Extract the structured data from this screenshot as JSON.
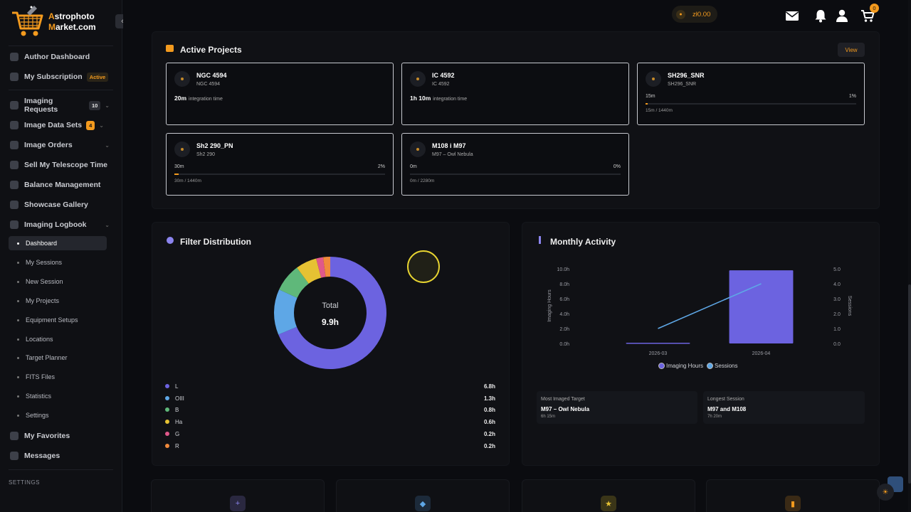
{
  "brand": {
    "line1_a": "A",
    "line1_b": "strophoto",
    "line2_a": "M",
    "line2_b": "arket.com"
  },
  "topbar": {
    "wallet": "zł0.00",
    "cart_count": "0"
  },
  "sidebar": {
    "items": [
      {
        "label": "Author Dashboard"
      },
      {
        "label": "My Subscription",
        "badge": "Active"
      },
      {
        "label": "Imaging Requests",
        "badge": "10"
      },
      {
        "label": "Image Data Sets",
        "badge": "4"
      },
      {
        "label": "Image Orders"
      },
      {
        "label": "Sell My Telescope Time"
      },
      {
        "label": "Balance Management"
      },
      {
        "label": "Showcase Gallery"
      },
      {
        "label": "Imaging Logbook"
      }
    ],
    "logbook_sub": [
      {
        "label": "Dashboard"
      },
      {
        "label": "My Sessions"
      },
      {
        "label": "New Session"
      },
      {
        "label": "My Projects"
      },
      {
        "label": "Equipment Setups"
      },
      {
        "label": "Locations"
      },
      {
        "label": "Target Planner"
      },
      {
        "label": "FITS Files"
      },
      {
        "label": "Statistics"
      },
      {
        "label": "Settings"
      }
    ],
    "extra": [
      {
        "label": "My Favorites"
      },
      {
        "label": "Messages"
      }
    ],
    "section_settings": "SETTINGS"
  },
  "projects": {
    "title": "Active Projects",
    "view_label": "View",
    "cards": [
      {
        "name": "NGC 4594",
        "sub": "NGC 4594",
        "time": "20m",
        "time_label": "integration time"
      },
      {
        "name": "IC 4592",
        "sub": "IC 4592",
        "time": "1h 10m",
        "time_label": "integration time"
      },
      {
        "name": "SH296_SNR",
        "sub": "SH296_SNR",
        "left": "15m",
        "pct": "1%",
        "progress": 0.01,
        "foot": "15m / 1440m"
      },
      {
        "name": "Sh2 290_PN",
        "sub": "Sh2 290",
        "left": "30m",
        "pct": "2%",
        "progress": 0.02,
        "foot": "30m / 1440m"
      },
      {
        "name": "M108 i M97",
        "sub": "M97 – Owl Nebula",
        "left": "0m",
        "pct": "0%",
        "progress": 0,
        "foot": "0m / 2280m"
      }
    ]
  },
  "filter": {
    "title": "Filter Distribution",
    "total_label": "Total",
    "total_value": "9.9h",
    "rows": [
      {
        "name": "L",
        "value": "6.8h",
        "color": "#6c63e0"
      },
      {
        "name": "OIII",
        "value": "1.3h",
        "color": "#5ea7e6"
      },
      {
        "name": "B",
        "value": "0.8h",
        "color": "#5fb87a"
      },
      {
        "name": "Ha",
        "value": "0.6h",
        "color": "#e6c233"
      },
      {
        "name": "G",
        "value": "0.2h",
        "color": "#e0588a"
      },
      {
        "name": "R",
        "value": "0.2h",
        "color": "#f08a3c"
      }
    ]
  },
  "chart_data": {
    "type": "bar",
    "categories": [
      "2026-03",
      "2026-04"
    ],
    "series": [
      {
        "name": "Imaging Hours",
        "kind": "bar",
        "axis": "left",
        "values": [
          0.1,
          9.8
        ],
        "color": "#6c63e0"
      },
      {
        "name": "Sessions",
        "kind": "line",
        "axis": "right",
        "values": [
          1,
          4
        ],
        "color": "#5ea7e6"
      }
    ],
    "ylabel": "Imaging Hours",
    "y2label": "Sessions",
    "ylim": [
      0,
      10
    ],
    "y2lim": [
      0,
      5
    ],
    "yticks": [
      "0.0h",
      "2.0h",
      "4.0h",
      "6.0h",
      "8.0h",
      "10.0h"
    ],
    "y2ticks": [
      "0.0",
      "1.0",
      "2.0",
      "3.0",
      "4.0",
      "5.0"
    ],
    "legend": "bottom"
  },
  "activity": {
    "title": "Monthly Activity",
    "legend_hours": "Imaging Hours",
    "legend_sessions": "Sessions",
    "most_label": "Most Imaged Target",
    "most_value": "M97 – Owl Nebula",
    "most_sub": "6h 15m",
    "longest_label": "Longest Session",
    "longest_value": "M97 and M108",
    "longest_sub": "7h 20m"
  }
}
